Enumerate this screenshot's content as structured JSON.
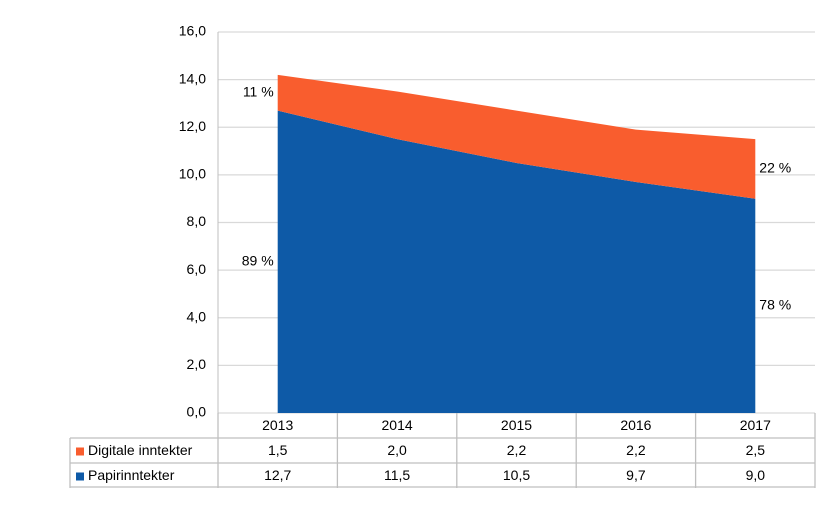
{
  "chart_data": {
    "type": "stacked_area",
    "categories": [
      "2013",
      "2014",
      "2015",
      "2016",
      "2017"
    ],
    "series": [
      {
        "name": "Digitale inntekter",
        "color": "#f95d2e",
        "values": [
          1.5,
          2.0,
          2.2,
          2.2,
          2.5
        ],
        "value_labels": [
          "1,5",
          "2,0",
          "2,2",
          "2,2",
          "2,5"
        ]
      },
      {
        "name": "Papirinntekter",
        "color": "#0e5aa7",
        "values": [
          12.7,
          11.5,
          10.5,
          9.7,
          9.0
        ],
        "value_labels": [
          "12,7",
          "11,5",
          "10,5",
          "9,7",
          "9,0"
        ]
      }
    ],
    "annotations": [
      "11 %",
      "89 %",
      "22 %",
      "78 %"
    ],
    "ylim": [
      0,
      16
    ],
    "yticks": [
      {
        "value": 0,
        "label": "0,0"
      },
      {
        "value": 2,
        "label": "2,0"
      },
      {
        "value": 4,
        "label": "4,0"
      },
      {
        "value": 6,
        "label": "6,0"
      },
      {
        "value": 8,
        "label": "8,0"
      },
      {
        "value": 10,
        "label": "10,0"
      },
      {
        "value": 12,
        "label": "12,0"
      },
      {
        "value": 14,
        "label": "14,0"
      },
      {
        "value": 16,
        "label": "16,0"
      }
    ],
    "grid": true
  }
}
